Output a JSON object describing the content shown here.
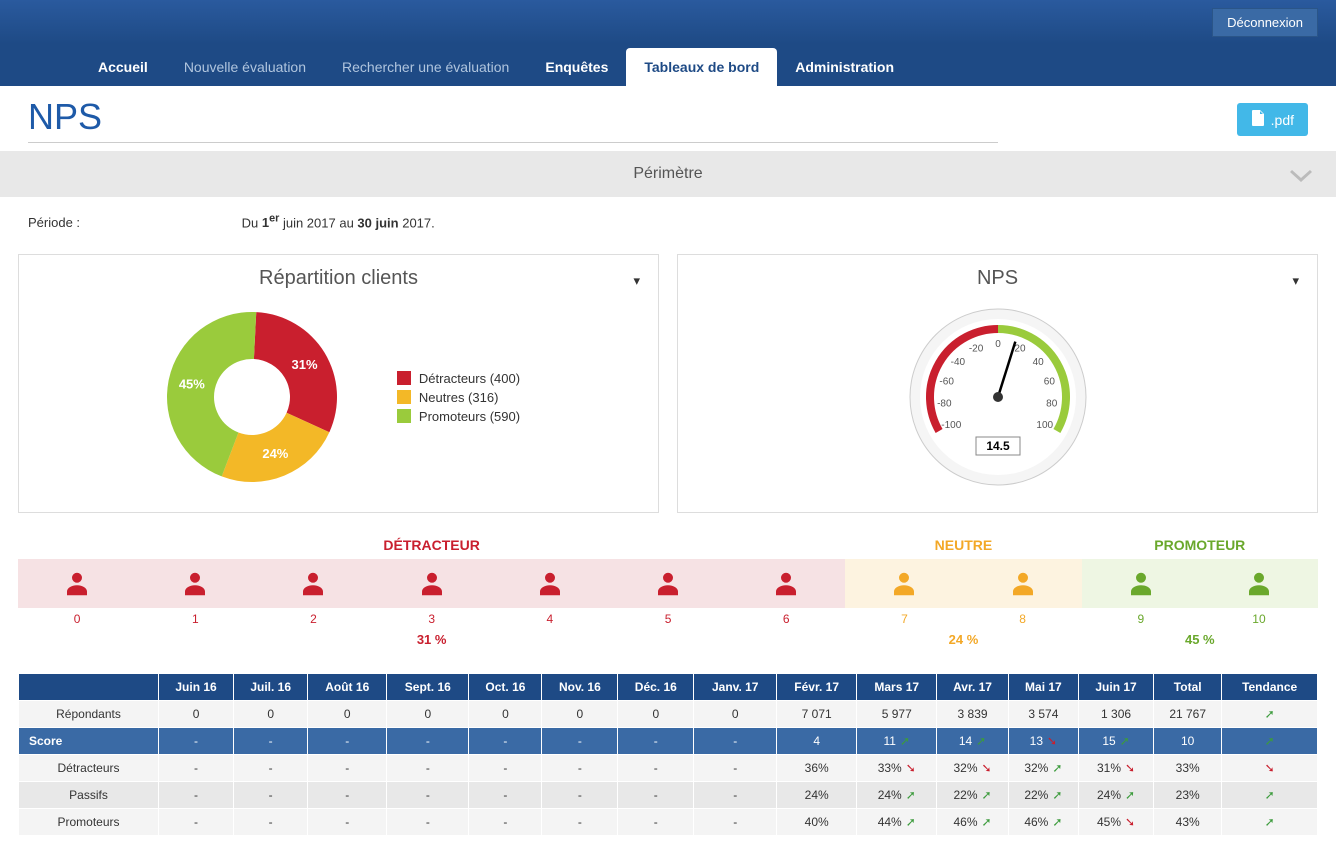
{
  "topbar": {
    "logout": "Déconnexion"
  },
  "nav": {
    "items": [
      {
        "label": "Accueil",
        "bold": true
      },
      {
        "label": "Nouvelle évaluation"
      },
      {
        "label": "Rechercher une évaluation"
      },
      {
        "label": "Enquêtes",
        "bold": true
      },
      {
        "label": "Tableaux de bord",
        "active": true
      },
      {
        "label": "Administration",
        "bold": true
      }
    ]
  },
  "page": {
    "title": "NPS",
    "pdf_label": ".pdf"
  },
  "perimeter": {
    "label": "Périmètre"
  },
  "period": {
    "label": "Période :",
    "prefix": "Du ",
    "d1": "1",
    "sup": "er",
    "mid": " juin 2017 au ",
    "d2": "30 juin",
    "suffix": " 2017."
  },
  "donut": {
    "title": "Répartition clients",
    "slices": [
      {
        "label": "Détracteurs (400)",
        "pct": 31,
        "text": "31%",
        "color": "#c91f2e"
      },
      {
        "label": "Neutres (316)",
        "pct": 24,
        "text": "24%",
        "color": "#f3b827"
      },
      {
        "label": "Promoteurs (590)",
        "pct": 45,
        "text": "45%",
        "color": "#9acb3c"
      }
    ],
    "inner_radius": 38,
    "outer_radius": 85
  },
  "gauge": {
    "title": "NPS",
    "value": 14.5,
    "value_text": "14.5",
    "min": -100,
    "max": 100,
    "ticks": [
      -100,
      -80,
      -60,
      -40,
      -20,
      0,
      20,
      40,
      60,
      80,
      100
    ],
    "red_color": "#c91f2e",
    "green_color": "#9acb3c"
  },
  "scale": {
    "segments": [
      {
        "label": "DÉTRACTEUR",
        "color": "#c91f2e",
        "bg": "#f6e2e4",
        "nums": [
          0,
          1,
          2,
          3,
          4,
          5,
          6
        ],
        "pct": "31 %"
      },
      {
        "label": "NEUTRE",
        "color": "#f3a827",
        "bg": "#fdf3e0",
        "nums": [
          7,
          8
        ],
        "pct": "24 %"
      },
      {
        "label": "PROMOTEUR",
        "color": "#6aa82c",
        "bg": "#eef6e3",
        "nums": [
          9,
          10
        ],
        "pct": "45 %"
      }
    ]
  },
  "table": {
    "columns": [
      "",
      "Juin 16",
      "Juil. 16",
      "Août 16",
      "Sept. 16",
      "Oct. 16",
      "Nov. 16",
      "Déc. 16",
      "Janv. 17",
      "Févr. 17",
      "Mars 17",
      "Avr. 17",
      "Mai 17",
      "Juin 17",
      "Total",
      "Tendance"
    ],
    "rows": [
      {
        "head": "Répondants",
        "vals": [
          "0",
          "0",
          "0",
          "0",
          "0",
          "0",
          "0",
          "0",
          "7 071",
          "5 977",
          "3 839",
          "3 574",
          "1 306",
          "21 767"
        ],
        "trend": "up"
      },
      {
        "head": "Score",
        "score": true,
        "vals": [
          "-",
          "-",
          "-",
          "-",
          "-",
          "-",
          "-",
          "-",
          "4",
          [
            "11",
            "up"
          ],
          [
            "14",
            "up"
          ],
          [
            "13",
            "down"
          ],
          [
            "15",
            "up"
          ],
          "10"
        ],
        "trend": "up"
      },
      {
        "head": "Détracteurs",
        "vals": [
          "-",
          "-",
          "-",
          "-",
          "-",
          "-",
          "-",
          "-",
          "36%",
          [
            "33%",
            "down"
          ],
          [
            "32%",
            "down"
          ],
          [
            "32%",
            "up"
          ],
          [
            "31%",
            "down"
          ],
          "33%"
        ],
        "trend": "down"
      },
      {
        "head": "Passifs",
        "vals": [
          "-",
          "-",
          "-",
          "-",
          "-",
          "-",
          "-",
          "-",
          "24%",
          [
            "24%",
            "up"
          ],
          [
            "22%",
            "up"
          ],
          [
            "22%",
            "up"
          ],
          [
            "24%",
            "up"
          ],
          "23%"
        ],
        "trend": "up"
      },
      {
        "head": "Promoteurs",
        "vals": [
          "-",
          "-",
          "-",
          "-",
          "-",
          "-",
          "-",
          "-",
          "40%",
          [
            "44%",
            "up"
          ],
          [
            "46%",
            "up"
          ],
          [
            "46%",
            "up"
          ],
          [
            "45%",
            "down"
          ],
          "43%"
        ],
        "trend": "up"
      }
    ]
  },
  "colors": {
    "nav_bg": "#1e4a85",
    "accent_blue": "#3a6aa5",
    "pdf_blue": "#42b8e8"
  }
}
